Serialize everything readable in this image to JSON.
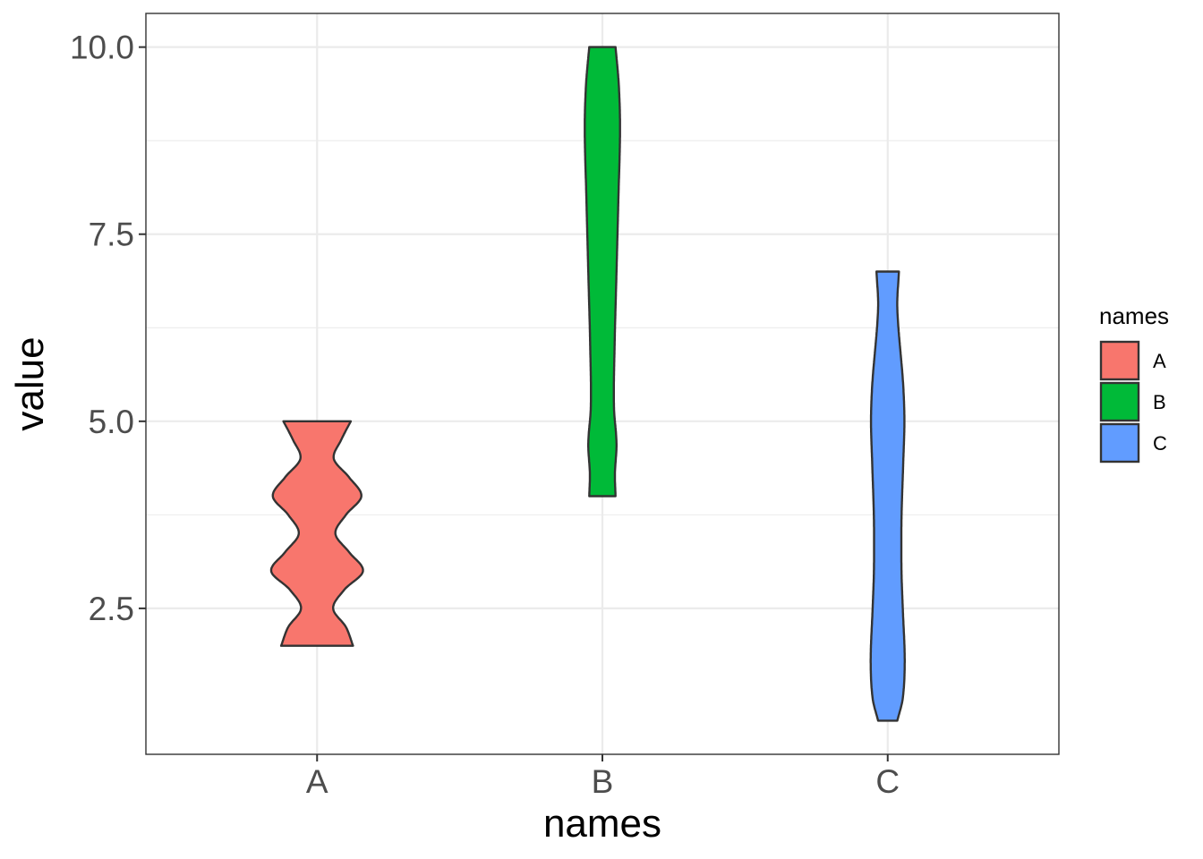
{
  "chart_data": {
    "type": "violin",
    "xlabel": "names",
    "ylabel": "value",
    "categories": [
      "A",
      "B",
      "C"
    ],
    "y_ticks": [
      "2.5",
      "5.0",
      "7.5",
      "10.0"
    ],
    "y_tick_values": [
      2.5,
      5.0,
      7.5,
      10.0
    ],
    "ylim": [
      0.55,
      10.45
    ],
    "grid": true,
    "legend": {
      "title": "names",
      "position": "right",
      "entries": [
        {
          "label": "A",
          "color": "#F8766D"
        },
        {
          "label": "B",
          "color": "#00BA38"
        },
        {
          "label": "C",
          "color": "#619CFF"
        }
      ]
    },
    "series": [
      {
        "category": "A",
        "color": "#F8766D",
        "min": 2.0,
        "max": 5.0,
        "density_profile": [
          [
            2.0,
            1.12
          ],
          [
            2.25,
            0.9
          ],
          [
            2.5,
            0.5
          ],
          [
            2.75,
            0.85
          ],
          [
            3.0,
            1.43
          ],
          [
            3.25,
            1.0
          ],
          [
            3.5,
            0.57
          ],
          [
            3.75,
            0.9
          ],
          [
            4.0,
            1.38
          ],
          [
            4.25,
            1.0
          ],
          [
            4.5,
            0.52
          ],
          [
            4.75,
            0.75
          ],
          [
            5.0,
            1.05
          ]
        ]
      },
      {
        "category": "B",
        "color": "#00BA38",
        "min": 4.0,
        "max": 10.0,
        "density_profile": [
          [
            4.0,
            0.41
          ],
          [
            4.3,
            0.39
          ],
          [
            4.7,
            0.44
          ],
          [
            5.2,
            0.36
          ],
          [
            6.0,
            0.38
          ],
          [
            7.0,
            0.44
          ],
          [
            8.0,
            0.5
          ],
          [
            8.9,
            0.55
          ],
          [
            9.5,
            0.51
          ],
          [
            10.0,
            0.41
          ]
        ]
      },
      {
        "category": "C",
        "color": "#619CFF",
        "min": 1.0,
        "max": 7.0,
        "density_profile": [
          [
            1.0,
            0.3
          ],
          [
            1.3,
            0.47
          ],
          [
            1.8,
            0.53
          ],
          [
            2.5,
            0.47
          ],
          [
            3.0,
            0.43
          ],
          [
            3.7,
            0.43
          ],
          [
            4.4,
            0.48
          ],
          [
            5.0,
            0.52
          ],
          [
            5.5,
            0.48
          ],
          [
            6.5,
            0.3
          ],
          [
            7.0,
            0.35
          ]
        ]
      }
    ]
  }
}
